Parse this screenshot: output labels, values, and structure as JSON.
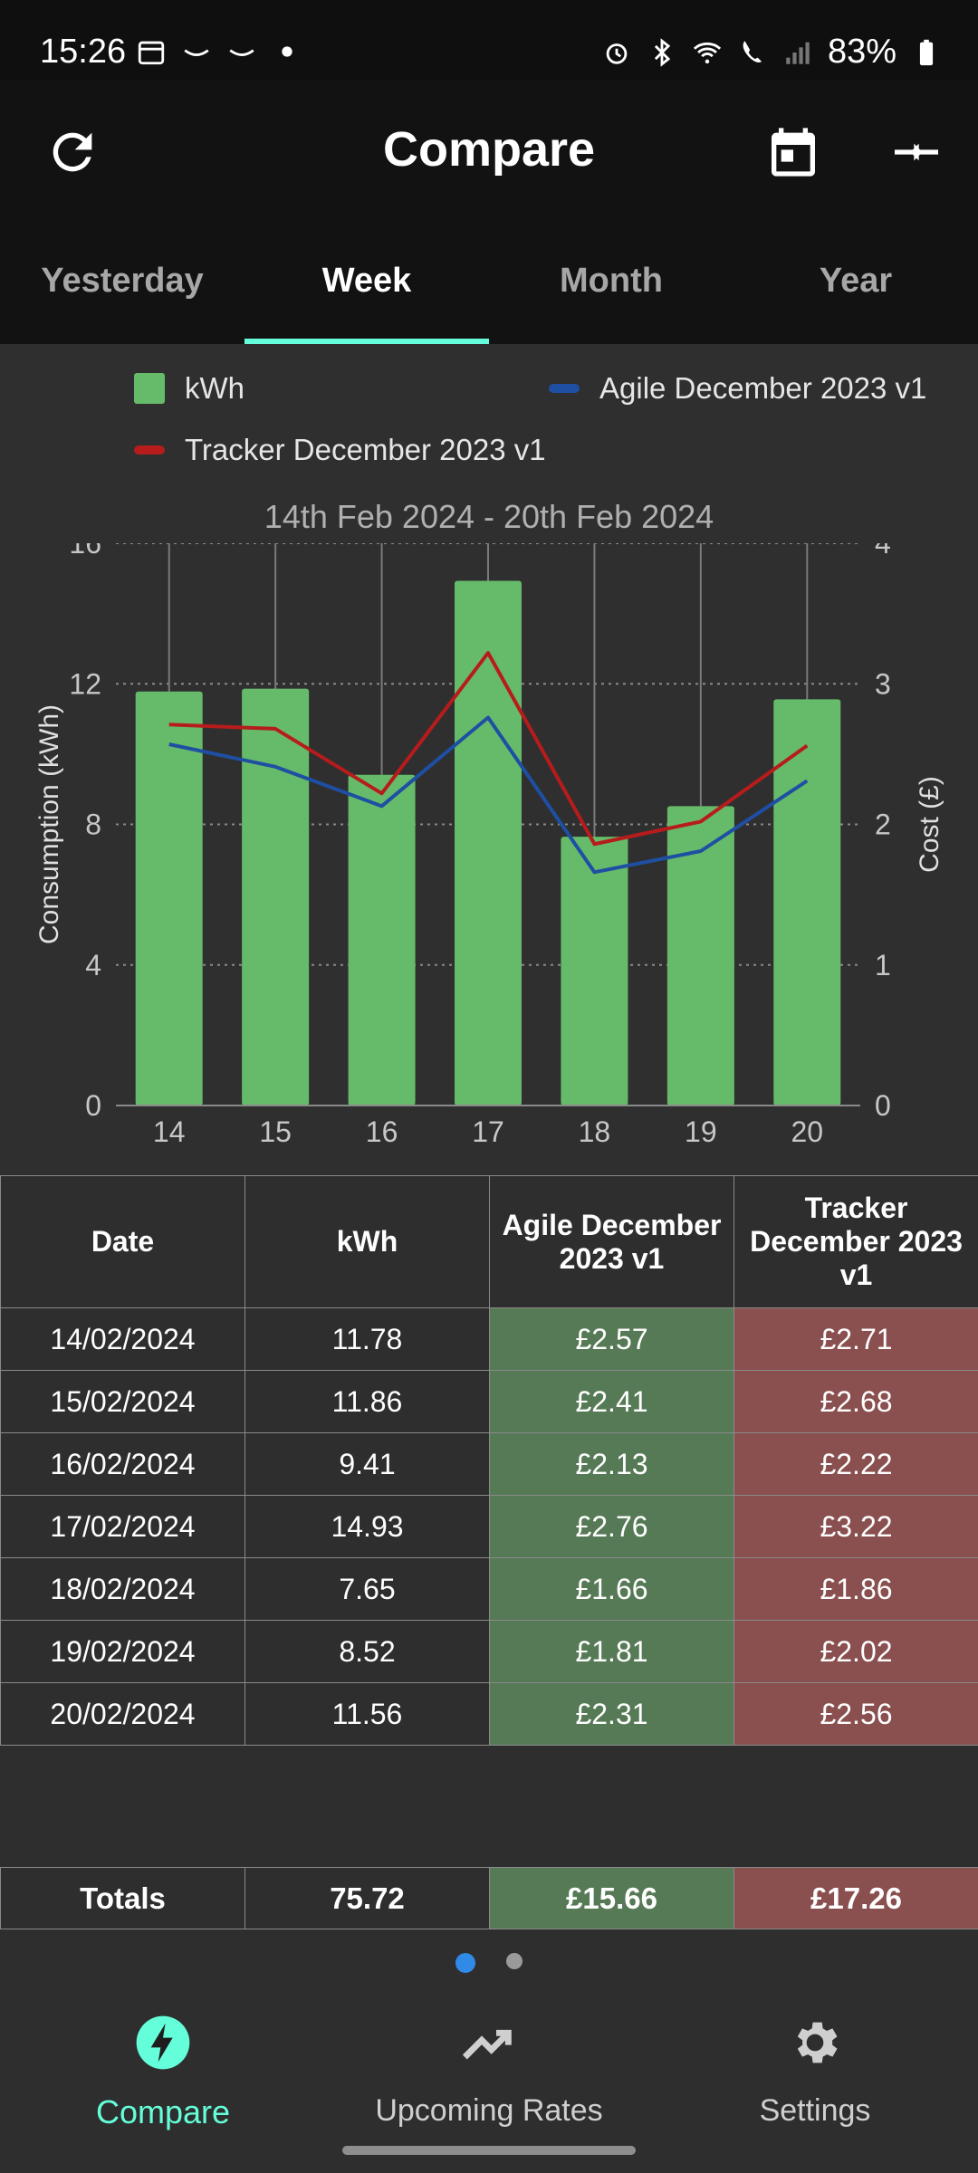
{
  "status_bar": {
    "time": "15:26",
    "battery": "83%"
  },
  "app_bar": {
    "title": "Compare"
  },
  "tabs": [
    {
      "label": "Yesterday",
      "active": false
    },
    {
      "label": "Week",
      "active": true
    },
    {
      "label": "Month",
      "active": false
    },
    {
      "label": "Year",
      "active": false
    }
  ],
  "legend": {
    "kwh": "kWh",
    "agile": "Agile December 2023 v1",
    "tracker": "Tracker December 2023 v1"
  },
  "colors": {
    "kwh": "#66bb6a",
    "agile": "#1e4fa3",
    "tracker": "#b71c1c",
    "accent": "#64ffda"
  },
  "chart_data": {
    "type": "bar",
    "title": "14th Feb 2024 - 20th Feb 2024",
    "categories": [
      "14",
      "15",
      "16",
      "17",
      "18",
      "19",
      "20"
    ],
    "ylabel": "Consumption (kWh)",
    "y2label": "Cost (£)",
    "ylim": [
      0,
      16
    ],
    "y2lim": [
      0,
      4
    ],
    "yticks": [
      "0",
      "4",
      "8",
      "12",
      "16"
    ],
    "y2ticks": [
      "0",
      "1",
      "2",
      "3",
      "4"
    ],
    "series": [
      {
        "name": "kWh",
        "kind": "bar",
        "axis": "left",
        "values": [
          11.78,
          11.86,
          9.41,
          14.93,
          7.65,
          8.52,
          11.56
        ]
      },
      {
        "name": "Agile December 2023 v1",
        "kind": "line",
        "axis": "right",
        "values": [
          2.57,
          2.41,
          2.13,
          2.76,
          1.66,
          1.81,
          2.31
        ]
      },
      {
        "name": "Tracker December 2023 v1",
        "kind": "line",
        "axis": "right",
        "values": [
          2.71,
          2.68,
          2.22,
          3.22,
          1.86,
          2.02,
          2.56
        ]
      }
    ],
    "grid": true
  },
  "table": {
    "headers": [
      "Date",
      "kWh",
      "Agile December 2023 v1",
      "Tracker December 2023 v1"
    ],
    "rows": [
      [
        "14/02/2024",
        "11.78",
        "£2.57",
        "£2.71"
      ],
      [
        "15/02/2024",
        "11.86",
        "£2.41",
        "£2.68"
      ],
      [
        "16/02/2024",
        "9.41",
        "£2.13",
        "£2.22"
      ],
      [
        "17/02/2024",
        "14.93",
        "£2.76",
        "£3.22"
      ],
      [
        "18/02/2024",
        "7.65",
        "£1.66",
        "£1.86"
      ],
      [
        "19/02/2024",
        "8.52",
        "£1.81",
        "£2.02"
      ],
      [
        "20/02/2024",
        "11.56",
        "£2.31",
        "£2.56"
      ]
    ],
    "totals": [
      "Totals",
      "75.72",
      "£15.66",
      "£17.26"
    ]
  },
  "pager": {
    "pages": 2,
    "current": 1
  },
  "bottom_nav": [
    {
      "label": "Compare",
      "icon": "lightning-icon",
      "active": true
    },
    {
      "label": "Upcoming Rates",
      "icon": "trending-up-icon",
      "active": false
    },
    {
      "label": "Settings",
      "icon": "gear-icon",
      "active": false
    }
  ]
}
